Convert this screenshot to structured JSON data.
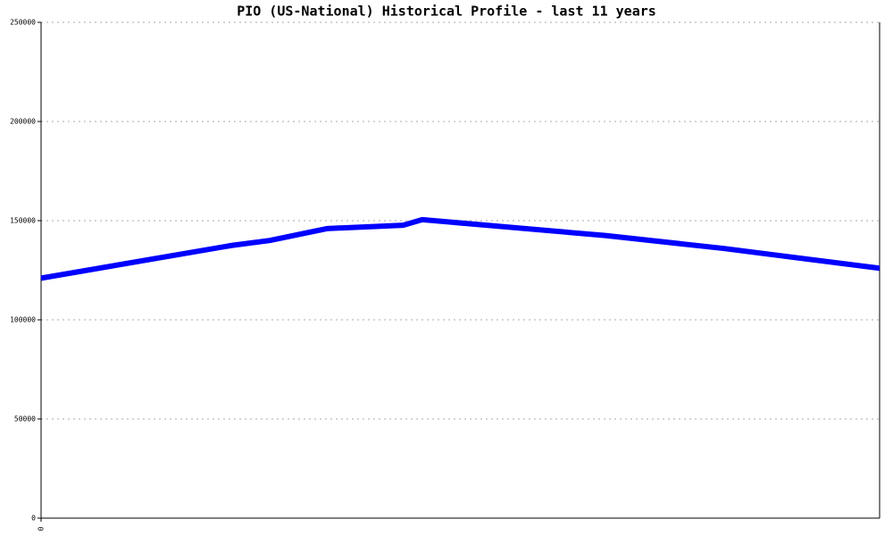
{
  "chart_data": {
    "type": "line",
    "title": "PIO (US-National) Historical Profile - last 11 years",
    "x": [
      0,
      2.5,
      3,
      3.75,
      4.75,
      5,
      7.4,
      8.95,
      11
    ],
    "series": [
      {
        "name": "PIO",
        "color": "#0000ff",
        "values": [
          121000,
          137500,
          140000,
          146000,
          147700,
          150500,
          142500,
          136000,
          126000
        ]
      }
    ],
    "xlim": [
      0,
      11
    ],
    "xticks": [
      0
    ],
    "ylim": [
      0,
      250000
    ],
    "yticks": [
      0,
      50000,
      100000,
      150000,
      200000,
      250000
    ],
    "grid": true,
    "legend": false
  }
}
